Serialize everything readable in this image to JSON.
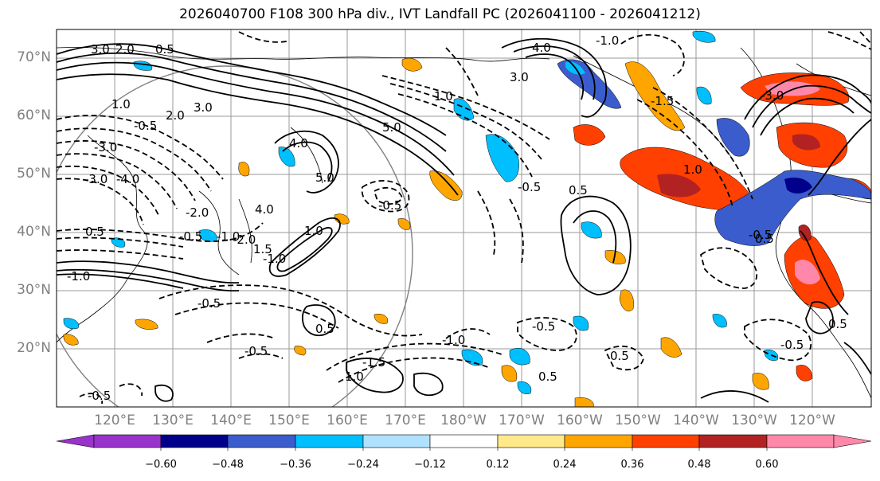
{
  "title": "2026040700 F108 300 hPa div., IVT Landfall PC (2026041100 - 2026041212)",
  "lat_labels": [
    "70°N",
    "60°N",
    "50°N",
    "40°N",
    "30°N",
    "20°N"
  ],
  "lon_labels": [
    "120°E",
    "130°E",
    "140°E",
    "150°E",
    "160°E",
    "170°E",
    "180°W",
    "170°W",
    "160°W",
    "150°W",
    "140°W",
    "130°W",
    "120°W"
  ],
  "colorbar": {
    "colors": [
      "#9933cc",
      "#00008b",
      "#3a5ccc",
      "#00bfff",
      "#b0e2ff",
      "#ffffff",
      "#ffe98a",
      "#ffa500",
      "#ff4000",
      "#b22222",
      "#ff88aa"
    ],
    "ticks": [
      "−0.60",
      "−0.48",
      "−0.36",
      "−0.24",
      "−0.12",
      "0.12",
      "0.24",
      "0.36",
      "0.48",
      "0.60"
    ]
  },
  "contour_labels": [
    "3.0",
    "2.0",
    "0.5",
    "1.0",
    "2.0",
    "3.0",
    "4.0",
    "5.0",
    "-3.0",
    "-0.5",
    "-4.0",
    "-3.0",
    "-2.0",
    "-1.0",
    "0.5",
    "-0.5",
    "-1.0",
    "-0.5",
    "4.0",
    "-2.0",
    "1.0",
    "1.5",
    "-1.0",
    "-1.5",
    "0.5",
    "-0.5",
    "-0.5",
    "3.0",
    "5.0",
    "1.0",
    "-0.5",
    "0.5",
    "-0.5",
    "-1.5",
    "-3.0",
    "4.0",
    "1.0",
    "0.5",
    "-0.5",
    "-0.5",
    "0.5",
    "0.5",
    "-1.0",
    "1.0",
    "-1.0",
    "0.5",
    "-0.5"
  ]
}
